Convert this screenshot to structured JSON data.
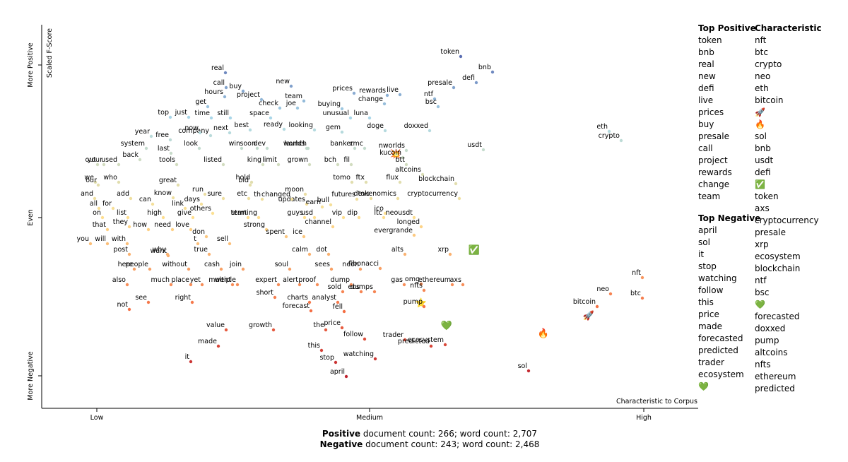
{
  "chart_data": {
    "type": "scatter",
    "y_axis_label": "Scaled F-Score",
    "x_axis_label": "Characteristic to Corpus",
    "xlim": [
      0,
      929
    ],
    "ylim": [
      0,
      545
    ],
    "xticks": [
      {
        "value": 78,
        "label": "Low"
      },
      {
        "value": 464,
        "label": "Medium"
      },
      {
        "value": 852,
        "label": "High"
      }
    ],
    "yticks": [
      {
        "value": 46,
        "label": "More Negative"
      },
      {
        "value": 270,
        "label": "Even"
      },
      {
        "value": 486,
        "label": "More Positive"
      }
    ],
    "colors": [
      "#a50026",
      "#f46d43",
      "#fee090",
      "#abd9e9",
      "#313695"
    ],
    "labels": [
      "token",
      "bnb",
      "defi",
      "presale",
      "real",
      "call",
      "new",
      "hours",
      "buy",
      "prices",
      "rewards",
      "team",
      "project",
      "get",
      "check",
      "change",
      "live",
      "ntf",
      "bsc",
      "top",
      "just",
      "time",
      "joe",
      "buying",
      "unusual",
      "still",
      "space",
      "luna",
      "doxxed",
      "year",
      "company",
      "free",
      "best",
      "ready",
      "now",
      "next",
      "looking",
      "gem",
      "doge",
      "system",
      "win",
      "soon",
      "launch",
      "cmc",
      "banker",
      "look",
      "back",
      "last",
      "dev",
      "worlds",
      "💥",
      "nworlds",
      "kucoin",
      "your",
      "used",
      "tools",
      "listed",
      "king",
      "limit",
      "grown",
      "btt",
      "altcoins",
      "bch",
      "fil",
      "out",
      "blockchain",
      "usdt",
      "we",
      "hold",
      "flux",
      "our",
      "who",
      "run",
      "moon",
      "tomo",
      "ftx",
      "and",
      "great",
      "bid",
      "can",
      "know",
      "updates",
      "earn",
      "tokenomics",
      "cryptocurrency",
      "all",
      "for",
      "add",
      "etc",
      "days",
      "sure",
      "changed",
      "th",
      "devs",
      "futures",
      "bull",
      "on",
      "list",
      "link",
      "others",
      "ico",
      "neousdt",
      "that",
      "they",
      "how",
      "high",
      "give",
      "term",
      "guys",
      "usd",
      "vip",
      "dip",
      "ltc",
      "channel",
      "longed",
      "need",
      "love",
      "strong",
      "starting",
      "you",
      "with",
      "evergrande",
      "spent",
      "ice",
      "don",
      "t",
      "sell",
      "will",
      "want",
      "dot",
      "alts",
      "xrp",
      "✅",
      "post",
      "why",
      "true",
      "calm",
      "fibonacci",
      "without",
      "join",
      "cash",
      "here",
      "neon",
      "soul",
      "sees",
      "went",
      "yet",
      "alert",
      "dump",
      "gas",
      "omg",
      "people",
      "also",
      "ethereum",
      "axs",
      "multiple",
      "nfts",
      "much",
      "place",
      "expert",
      "proof",
      "sold",
      "eos",
      "dumps",
      "see",
      "short",
      "⭐",
      "pump",
      "charts",
      "analyst",
      "not",
      "right",
      "forecast",
      "fell",
      "💚",
      "🔥",
      "🚀",
      "value",
      "growth",
      "price",
      "the",
      "trader",
      "follow",
      "ecosystem",
      "made",
      "this",
      "predicted",
      "watching",
      "stop",
      "it",
      "sol",
      "april",
      "eth",
      "crypto",
      "nft",
      "btc",
      "neo",
      "bitcoin"
    ],
    "x": [
      593,
      638,
      615,
      583,
      260,
      261,
      353,
      259,
      285,
      442,
      489,
      371,
      311,
      235,
      337,
      485,
      507,
      556,
      561,
      182,
      208,
      240,
      362,
      425,
      437,
      267,
      324,
      464,
      549,
      155,
      239,
      182,
      295,
      343,
      224,
      266,
      386,
      425,
      486,
      148,
      283,
      305,
      377,
      457,
      443,
      223,
      139,
      183,
      319,
      375,
      501,
      516,
      511,
      88,
      109,
      191,
      257,
      313,
      335,
      379,
      516,
      539,
      419,
      438,
      79,
      586,
      625,
      76,
      297,
      507,
      80,
      109,
      231,
      373,
      439,
      459,
      75,
      193,
      295,
      157,
      186,
      375,
      397,
      504,
      591,
      81,
      101,
      126,
      293,
      226,
      257,
      354,
      312,
      466,
      446,
      409,
      86,
      122,
      203,
      242,
      486,
      527,
      93,
      124,
      151,
      172,
      214,
      292,
      372,
      386,
      427,
      449,
      484,
      412,
      537,
      185,
      211,
      318,
      307,
      69,
      121,
      527,
      346,
      371,
      233,
      221,
      266,
      93,
      179,
      406,
      514,
      578,
      612,
      124,
      178,
      237,
      379,
      479,
      208,
      285,
      254,
      131,
      451,
      351,
      410,
      270,
      227,
      365,
      438,
      513,
      537,
      153,
      121,
      581,
      596,
      277,
      541,
      183,
      211,
      335,
      390,
      426,
      452,
      471,
      151,
      330,
      537,
      541,
      379,
      419,
      124,
      213,
      381,
      428,
      573,
      710,
      774,
      261,
      328,
      425,
      402,
      514,
      457,
      571,
      250,
      396,
      551,
      472,
      416,
      211,
      689,
      431,
      803,
      820,
      850,
      850,
      805,
      786
    ],
    "y": [
      498,
      476,
      461,
      454,
      475,
      454,
      456,
      441,
      449,
      446,
      443,
      435,
      437,
      427,
      425,
      431,
      444,
      438,
      427,
      412,
      412,
      411,
      425,
      424,
      411,
      411,
      411,
      411,
      393,
      385,
      386,
      380,
      394,
      395,
      390,
      390,
      394,
      391,
      393,
      368,
      368,
      368,
      368,
      368,
      368,
      368,
      352,
      361,
      368,
      368,
      361,
      365,
      355,
      345,
      345,
      345,
      345,
      345,
      345,
      345,
      345,
      331,
      345,
      345,
      345,
      318,
      366,
      320,
      320,
      320,
      316,
      320,
      303,
      303,
      320,
      320,
      297,
      316,
      316,
      289,
      298,
      289,
      285,
      297,
      297,
      283,
      283,
      297,
      297,
      289,
      297,
      296,
      296,
      297,
      296,
      288,
      270,
      270,
      283,
      276,
      276,
      270,
      253,
      257,
      253,
      270,
      270,
      270,
      270,
      270,
      270,
      270,
      270,
      257,
      257,
      253,
      253,
      253,
      270,
      233,
      233,
      245,
      243,
      243,
      243,
      233,
      233,
      233,
      216,
      218,
      218,
      218,
      225,
      218,
      218,
      218,
      218,
      198,
      197,
      197,
      197,
      197,
      197,
      197,
      197,
      175,
      175,
      175,
      175,
      175,
      176,
      197,
      175,
      175,
      175,
      175,
      167,
      175,
      175,
      175,
      175,
      165,
      165,
      165,
      150,
      157,
      150,
      144,
      150,
      150,
      140,
      150,
      138,
      137,
      118,
      107,
      132,
      111,
      111,
      114,
      111,
      97,
      98,
      90,
      88,
      82,
      88,
      70,
      65,
      66,
      53,
      45,
      392,
      379,
      185,
      156,
      162,
      144
    ]
  },
  "lists": {
    "top_positive": {
      "title": "Top Positive",
      "items": [
        "token",
        "bnb",
        "real",
        "new",
        "defi",
        "live",
        "prices",
        "buy",
        "presale",
        "call",
        "project",
        "rewards",
        "change",
        "team"
      ]
    },
    "top_negative": {
      "title": "Top Negative",
      "items": [
        "april",
        "sol",
        "it",
        "stop",
        "watching",
        "follow",
        "this",
        "price",
        "made",
        "forecasted",
        "predicted",
        "trader",
        "ecosystem",
        "💚"
      ]
    },
    "characteristic": {
      "title": "Characteristic",
      "items": [
        "nft",
        "btc",
        "crypto",
        "neo",
        "eth",
        "bitcoin",
        "🚀",
        "🔥",
        "sol",
        "bnb",
        "usdt",
        "defi",
        "✅",
        "token",
        "axs",
        "cryptocurrency",
        "presale",
        "xrp",
        "ecosystem",
        "blockchain",
        "ntf",
        "bsc",
        "💚",
        "forecasted",
        "doxxed",
        "pump",
        "altcoins",
        "nfts",
        "ethereum",
        "predicted"
      ]
    }
  },
  "footer": [
    {
      "label": "Positive",
      "text": " document count: 266; word count: 2,707"
    },
    {
      "label": "Negative",
      "text": " document count: 243; word count: 2,468"
    }
  ]
}
